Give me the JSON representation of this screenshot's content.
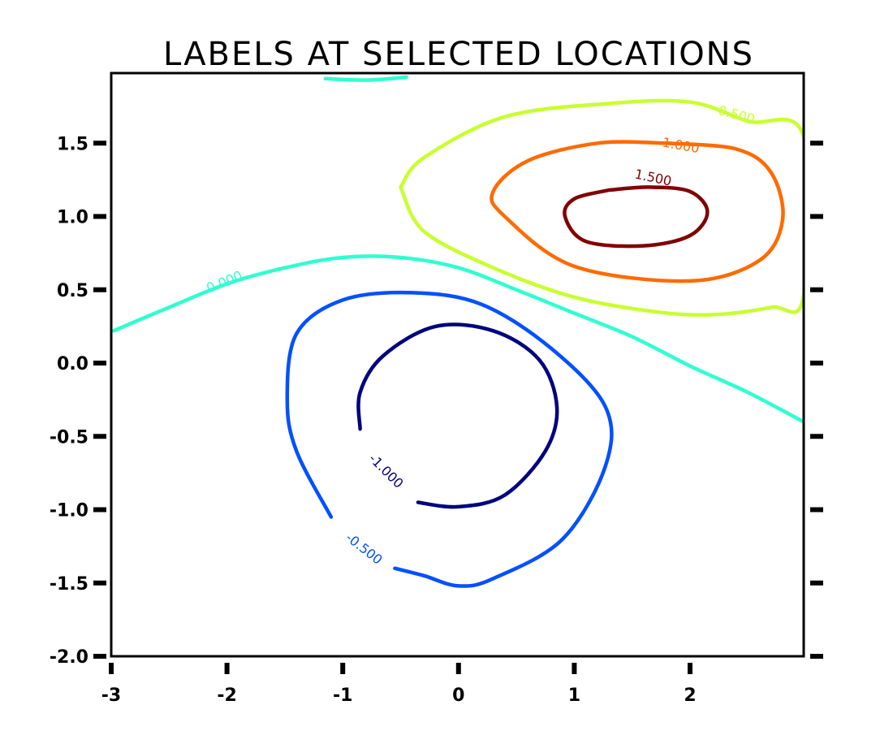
{
  "chart_data": {
    "type": "contour",
    "title": "LABELS AT SELECTED LOCATIONS",
    "xlabel": "",
    "ylabel": "",
    "xlim": [
      -3,
      3
    ],
    "ylim": [
      -2,
      2
    ],
    "x_ticks": [
      "-3",
      "-2",
      "-1",
      "0",
      "1",
      "2"
    ],
    "y_ticks": [
      "-2.0",
      "-1.5",
      "-1.0",
      "-0.5",
      "0.0",
      "0.5",
      "1.0",
      "1.5"
    ],
    "grid": false,
    "levels": [
      {
        "value": 1.5,
        "label": "1.500",
        "color": "#800000",
        "points": [
          [
            1.3,
            1.18
          ],
          [
            1.65,
            1.2
          ],
          [
            2.0,
            1.17
          ],
          [
            2.15,
            1.03
          ],
          [
            2.0,
            0.87
          ],
          [
            1.6,
            0.8
          ],
          [
            1.1,
            0.83
          ],
          [
            0.92,
            1.0
          ],
          [
            1.0,
            1.12
          ],
          [
            1.3,
            1.18
          ]
        ]
      },
      {
        "value": 1.0,
        "label": "1.000",
        "color": "#ff6a00",
        "points": [
          [
            1.8,
            1.5
          ],
          [
            2.4,
            1.46
          ],
          [
            2.7,
            1.3
          ],
          [
            2.8,
            0.98
          ],
          [
            2.6,
            0.7
          ],
          [
            2.0,
            0.56
          ],
          [
            1.0,
            0.66
          ],
          [
            0.4,
            1.0
          ],
          [
            0.3,
            1.17
          ],
          [
            0.6,
            1.38
          ],
          [
            1.2,
            1.5
          ],
          [
            1.8,
            1.5
          ]
        ]
      },
      {
        "value": 0.5,
        "label": "0.500",
        "color": "#c8ff2f",
        "points": [
          [
            -0.5,
            1.2
          ],
          [
            -0.3,
            1.4
          ],
          [
            0.4,
            1.68
          ],
          [
            1.3,
            1.77
          ],
          [
            2.0,
            1.78
          ],
          [
            2.5,
            1.65
          ],
          [
            2.98,
            1.55
          ],
          [
            2.98,
            0.45
          ],
          [
            2.7,
            0.38
          ],
          [
            2.2,
            0.33
          ],
          [
            1.7,
            0.35
          ],
          [
            1.0,
            0.45
          ],
          [
            0.3,
            0.65
          ],
          [
            -0.3,
            0.9
          ],
          [
            -0.5,
            1.2
          ]
        ]
      },
      {
        "value": 0.0,
        "label": "0.000",
        "color": "#2fffd0",
        "points": [
          [
            -2.98,
            0.22
          ],
          [
            -2.5,
            0.38
          ],
          [
            -2.0,
            0.54
          ],
          [
            -1.5,
            0.65
          ],
          [
            -1.0,
            0.72
          ],
          [
            -0.5,
            0.72
          ],
          [
            0.0,
            0.65
          ],
          [
            0.5,
            0.5
          ],
          [
            1.0,
            0.34
          ],
          [
            1.5,
            0.18
          ],
          [
            2.0,
            -0.02
          ],
          [
            2.5,
            -0.2
          ],
          [
            2.98,
            -0.4
          ]
        ]
      },
      {
        "value": 0.0,
        "label": "",
        "color": "#2fffd0",
        "points": [
          [
            -1.15,
            1.94
          ],
          [
            -0.8,
            1.93
          ],
          [
            -0.45,
            1.95
          ]
        ]
      },
      {
        "value": -0.5,
        "label": "-0.500",
        "color": "#0050ff",
        "points": [
          [
            -1.1,
            -1.05
          ],
          [
            -1.4,
            -0.6
          ],
          [
            -1.48,
            -0.25
          ],
          [
            -1.4,
            0.2
          ],
          [
            -1.0,
            0.43
          ],
          [
            -0.4,
            0.48
          ],
          [
            0.2,
            0.4
          ],
          [
            0.8,
            0.1
          ],
          [
            1.27,
            -0.3
          ],
          [
            1.27,
            -0.7
          ],
          [
            0.9,
            -1.2
          ],
          [
            0.3,
            -1.47
          ],
          [
            0.0,
            -1.52
          ],
          [
            -0.3,
            -1.45
          ],
          [
            -0.55,
            -1.4
          ]
        ]
      },
      {
        "value": -1.0,
        "label": "-1.000",
        "color": "#000080",
        "points": [
          [
            -0.35,
            -0.95
          ],
          [
            0.0,
            -0.98
          ],
          [
            0.4,
            -0.9
          ],
          [
            0.75,
            -0.6
          ],
          [
            0.85,
            -0.3
          ],
          [
            0.7,
            0.02
          ],
          [
            0.3,
            0.22
          ],
          [
            -0.2,
            0.25
          ],
          [
            -0.65,
            0.05
          ],
          [
            -0.85,
            -0.2
          ],
          [
            -0.85,
            -0.45
          ]
        ]
      }
    ],
    "labels": [
      {
        "text": "1.500",
        "x": 1.68,
        "y": 1.26,
        "angle": 12,
        "color": "#800000"
      },
      {
        "text": "1.000",
        "x": 1.92,
        "y": 1.48,
        "angle": 10,
        "color": "#ff6a00"
      },
      {
        "text": "0.500",
        "x": 2.4,
        "y": 1.69,
        "angle": 15,
        "color": "#c8ff2f"
      },
      {
        "text": "0.000",
        "x": -2.02,
        "y": 0.55,
        "angle": -22,
        "color": "#2fffd0"
      },
      {
        "text": "-0.500",
        "x": -0.82,
        "y": -1.27,
        "angle": 38,
        "color": "#0050ff"
      },
      {
        "text": "-1.000",
        "x": -0.63,
        "y": -0.74,
        "angle": 45,
        "color": "#000080"
      }
    ]
  }
}
